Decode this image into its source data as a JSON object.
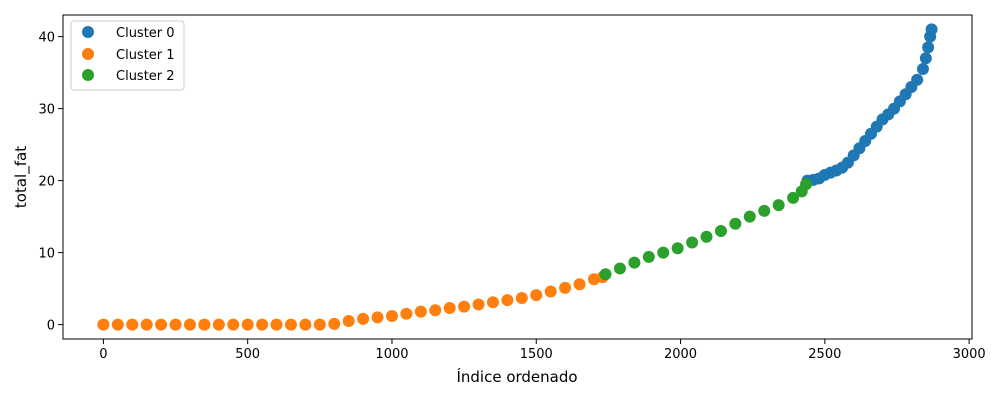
{
  "chart_data": {
    "type": "scatter",
    "xlabel": "Índice ordenado",
    "ylabel": "total_fat",
    "xlim": [
      -140,
      3010
    ],
    "ylim": [
      -2.0,
      43.0
    ],
    "x_ticks": [
      0,
      500,
      1000,
      1500,
      2000,
      2500,
      3000
    ],
    "y_ticks": [
      0,
      10,
      20,
      30,
      40
    ],
    "grid": false,
    "legend_position": "top-left",
    "series": [
      {
        "name": "Cluster 0",
        "color": "#1f77b4",
        "points": [
          [
            2440,
            20.0
          ],
          [
            2460,
            20.1
          ],
          [
            2480,
            20.3
          ],
          [
            2500,
            20.8
          ],
          [
            2520,
            21.1
          ],
          [
            2540,
            21.4
          ],
          [
            2560,
            21.8
          ],
          [
            2580,
            22.5
          ],
          [
            2600,
            23.5
          ],
          [
            2620,
            24.5
          ],
          [
            2640,
            25.5
          ],
          [
            2660,
            26.5
          ],
          [
            2680,
            27.5
          ],
          [
            2700,
            28.5
          ],
          [
            2720,
            29.2
          ],
          [
            2740,
            30.0
          ],
          [
            2760,
            31.0
          ],
          [
            2780,
            32.0
          ],
          [
            2800,
            33.0
          ],
          [
            2820,
            34.0
          ],
          [
            2840,
            35.5
          ],
          [
            2850,
            37.0
          ],
          [
            2858,
            38.5
          ],
          [
            2865,
            40.0
          ],
          [
            2870,
            41.0
          ]
        ]
      },
      {
        "name": "Cluster 1",
        "color": "#ff7f0e",
        "points": [
          [
            0,
            0
          ],
          [
            50,
            0
          ],
          [
            100,
            0
          ],
          [
            150,
            0
          ],
          [
            200,
            0
          ],
          [
            250,
            0
          ],
          [
            300,
            0
          ],
          [
            350,
            0
          ],
          [
            400,
            0
          ],
          [
            450,
            0
          ],
          [
            500,
            0
          ],
          [
            550,
            0
          ],
          [
            600,
            0
          ],
          [
            650,
            0
          ],
          [
            700,
            0
          ],
          [
            750,
            0
          ],
          [
            800,
            0.1
          ],
          [
            850,
            0.5
          ],
          [
            900,
            0.8
          ],
          [
            950,
            1.0
          ],
          [
            1000,
            1.2
          ],
          [
            1050,
            1.5
          ],
          [
            1100,
            1.8
          ],
          [
            1150,
            2.0
          ],
          [
            1200,
            2.3
          ],
          [
            1250,
            2.5
          ],
          [
            1300,
            2.8
          ],
          [
            1350,
            3.1
          ],
          [
            1400,
            3.4
          ],
          [
            1450,
            3.7
          ],
          [
            1500,
            4.1
          ],
          [
            1550,
            4.6
          ],
          [
            1600,
            5.1
          ],
          [
            1650,
            5.6
          ],
          [
            1700,
            6.3
          ],
          [
            1730,
            6.6
          ]
        ]
      },
      {
        "name": "Cluster 2",
        "color": "#2ca02c",
        "points": [
          [
            1740,
            7.0
          ],
          [
            1790,
            7.8
          ],
          [
            1840,
            8.6
          ],
          [
            1890,
            9.4
          ],
          [
            1940,
            10.0
          ],
          [
            1990,
            10.6
          ],
          [
            2040,
            11.4
          ],
          [
            2090,
            12.2
          ],
          [
            2140,
            13.0
          ],
          [
            2190,
            14.0
          ],
          [
            2240,
            15.0
          ],
          [
            2290,
            15.8
          ],
          [
            2340,
            16.6
          ],
          [
            2390,
            17.6
          ],
          [
            2420,
            18.5
          ],
          [
            2435,
            19.5
          ]
        ]
      }
    ]
  }
}
